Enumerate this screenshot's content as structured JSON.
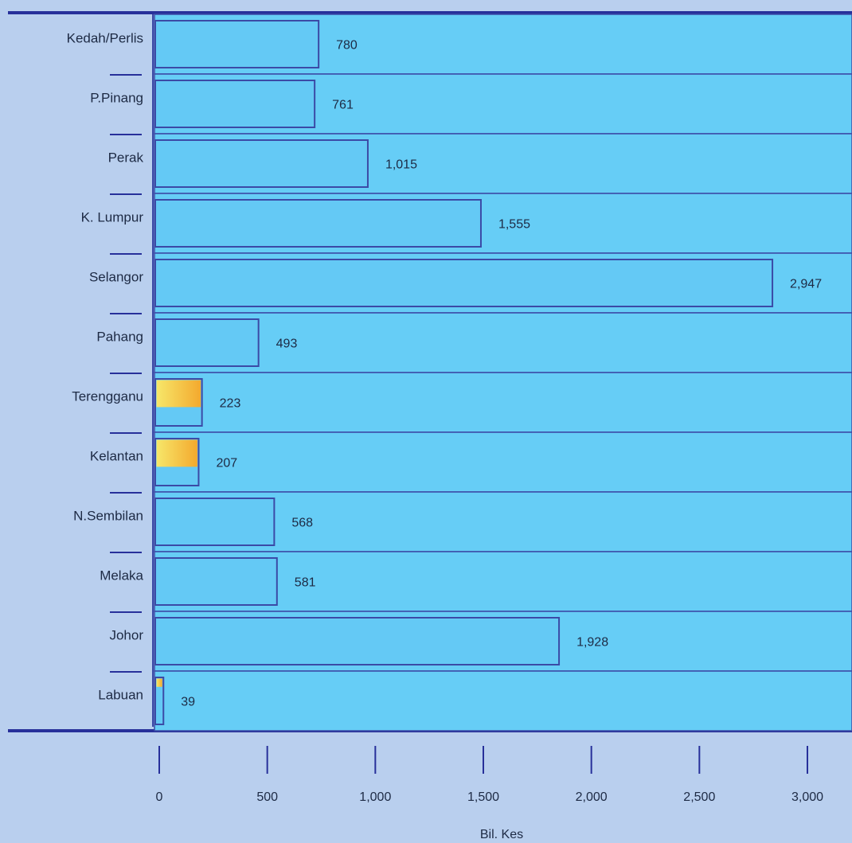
{
  "chart_data": {
    "type": "bar",
    "orientation": "horizontal",
    "categories": [
      "Kedah/Perlis",
      "P.Pinang",
      "Perak",
      "K. Lumpur",
      "Selangor",
      "Pahang",
      "Terengganu",
      "Kelantan",
      "N.Sembilan",
      "Melaka",
      "Johor",
      "Labuan"
    ],
    "values": [
      780,
      761,
      1015,
      1555,
      2947,
      493,
      223,
      207,
      568,
      581,
      1928,
      39
    ],
    "value_labels": [
      "780",
      "761",
      "1,015",
      "1,555",
      "2,947",
      "493",
      "223",
      "207",
      "568",
      "581",
      "1,928",
      "39"
    ],
    "highlight_fraction": [
      0,
      0,
      0,
      0,
      0,
      0,
      0.6,
      0.6,
      0,
      0,
      0,
      0.2
    ],
    "x_ticks": [
      0,
      500,
      1000,
      1500,
      2000,
      2500,
      3000
    ],
    "x_tick_labels": [
      "0",
      "500",
      "1,000",
      "1,500",
      "2,000",
      "2,500",
      "3,000"
    ],
    "xlabel": "Bil. Kes",
    "xlim": [
      0,
      3000
    ],
    "grid": false,
    "legend": "none",
    "colors": {
      "background": "#b9cfee",
      "band": "#66cdf6",
      "bar": "#64c9f5",
      "bar_border": "#3b4aa6",
      "axis_line": "#27309a",
      "highlight_top": "#f7e76a",
      "highlight_bottom": "#f3a92e"
    }
  }
}
